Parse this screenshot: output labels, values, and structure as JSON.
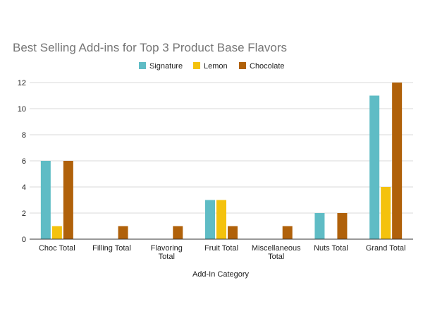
{
  "chart_data": {
    "type": "bar",
    "title": "Best Selling Add-ins for Top 3 Product Base Flavors",
    "xlabel": "Add-In Category",
    "ylabel": "",
    "ylim": [
      0,
      12
    ],
    "yticks": [
      0,
      2,
      4,
      6,
      8,
      10,
      12
    ],
    "grid": true,
    "legend_position": "top",
    "categories": [
      "Choc Total",
      "Filling Total",
      "Flavoring Total",
      "Fruit Total",
      "Miscellaneous Total",
      "Nuts Total",
      "Grand Total"
    ],
    "category_label_lines": [
      [
        "Choc Total"
      ],
      [
        "Filling Total"
      ],
      [
        "Flavoring",
        "Total"
      ],
      [
        "Fruit Total"
      ],
      [
        "Miscellaneous",
        "Total"
      ],
      [
        "Nuts Total"
      ],
      [
        "Grand Total"
      ]
    ],
    "series": [
      {
        "name": "Signature",
        "color": "#5fbcc5",
        "values": [
          6,
          0,
          0,
          3,
          0,
          2,
          11
        ]
      },
      {
        "name": "Lemon",
        "color": "#f4c20d",
        "values": [
          1,
          0,
          0,
          3,
          0,
          0,
          4
        ]
      },
      {
        "name": "Chocolate",
        "color": "#b0610a",
        "values": [
          6,
          1,
          1,
          1,
          1,
          2,
          12
        ]
      }
    ]
  }
}
